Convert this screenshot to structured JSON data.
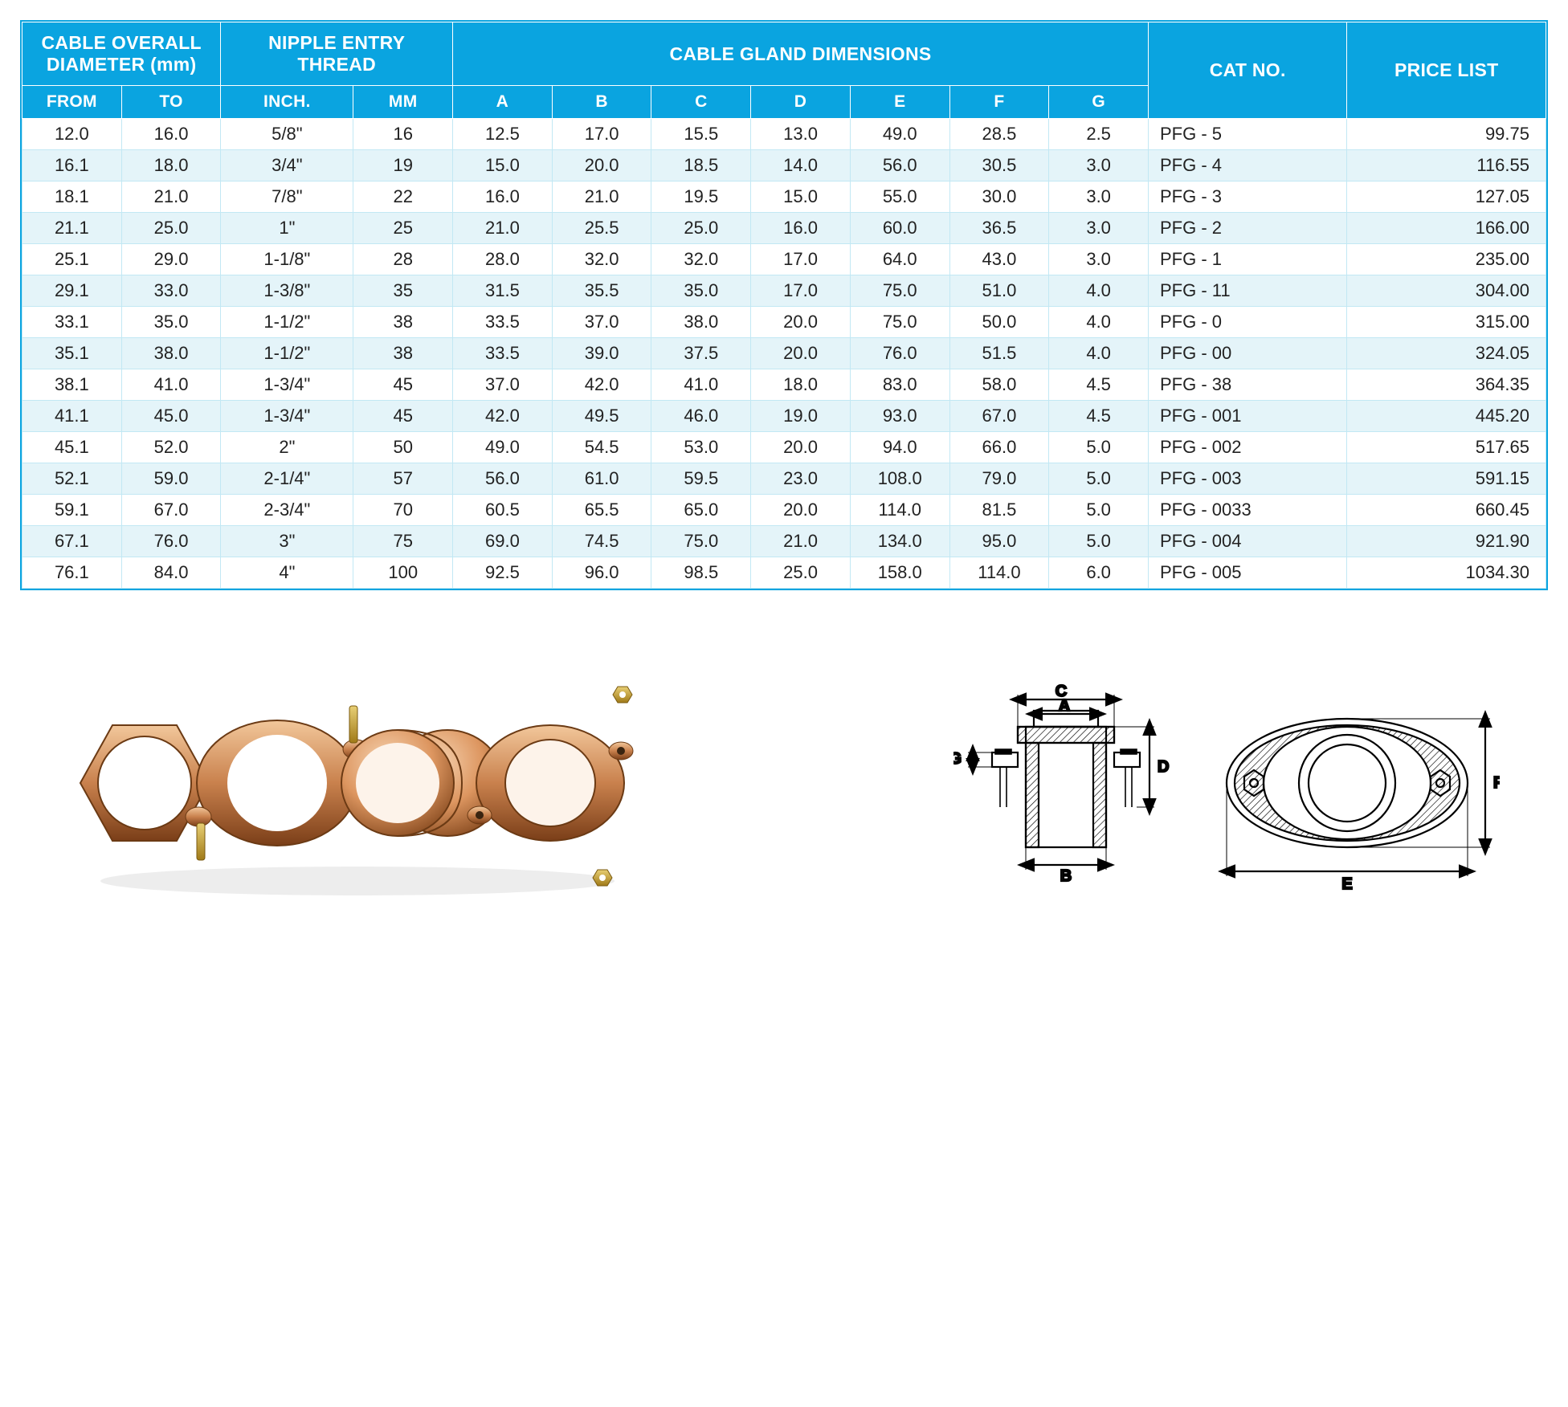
{
  "table": {
    "header": {
      "cable_overall_diameter": "CABLE OVERALL DIAMETER (mm)",
      "nipple_entry_thread": "NIPPLE ENTRY THREAD",
      "cable_gland_dimensions": "CABLE GLAND DIMENSIONS",
      "cat_no": "CAT NO.",
      "price_list": "PRICE LIST",
      "from": "FROM",
      "to": "TO",
      "inch": "INCH.",
      "mm": "MM",
      "a": "A",
      "b": "B",
      "c": "C",
      "d": "D",
      "e": "E",
      "f": "F",
      "g": "G"
    },
    "rows": [
      {
        "from": "12.0",
        "to": "16.0",
        "inch": "5/8\"",
        "mm": "16",
        "a": "12.5",
        "b": "17.0",
        "c": "15.5",
        "d": "13.0",
        "e": "49.0",
        "f": "28.5",
        "g": "2.5",
        "cat": "PFG - 5",
        "price": "99.75"
      },
      {
        "from": "16.1",
        "to": "18.0",
        "inch": "3/4\"",
        "mm": "19",
        "a": "15.0",
        "b": "20.0",
        "c": "18.5",
        "d": "14.0",
        "e": "56.0",
        "f": "30.5",
        "g": "3.0",
        "cat": "PFG - 4",
        "price": "116.55"
      },
      {
        "from": "18.1",
        "to": "21.0",
        "inch": "7/8\"",
        "mm": "22",
        "a": "16.0",
        "b": "21.0",
        "c": "19.5",
        "d": "15.0",
        "e": "55.0",
        "f": "30.0",
        "g": "3.0",
        "cat": "PFG - 3",
        "price": "127.05"
      },
      {
        "from": "21.1",
        "to": "25.0",
        "inch": "1\"",
        "mm": "25",
        "a": "21.0",
        "b": "25.5",
        "c": "25.0",
        "d": "16.0",
        "e": "60.0",
        "f": "36.5",
        "g": "3.0",
        "cat": "PFG - 2",
        "price": "166.00"
      },
      {
        "from": "25.1",
        "to": "29.0",
        "inch": "1-1/8\"",
        "mm": "28",
        "a": "28.0",
        "b": "32.0",
        "c": "32.0",
        "d": "17.0",
        "e": "64.0",
        "f": "43.0",
        "g": "3.0",
        "cat": "PFG - 1",
        "price": "235.00"
      },
      {
        "from": "29.1",
        "to": "33.0",
        "inch": "1-3/8\"",
        "mm": "35",
        "a": "31.5",
        "b": "35.5",
        "c": "35.0",
        "d": "17.0",
        "e": "75.0",
        "f": "51.0",
        "g": "4.0",
        "cat": "PFG - 11",
        "price": "304.00"
      },
      {
        "from": "33.1",
        "to": "35.0",
        "inch": "1-1/2\"",
        "mm": "38",
        "a": "33.5",
        "b": "37.0",
        "c": "38.0",
        "d": "20.0",
        "e": "75.0",
        "f": "50.0",
        "g": "4.0",
        "cat": "PFG - 0",
        "price": "315.00"
      },
      {
        "from": "35.1",
        "to": "38.0",
        "inch": "1-1/2\"",
        "mm": "38",
        "a": "33.5",
        "b": "39.0",
        "c": "37.5",
        "d": "20.0",
        "e": "76.0",
        "f": "51.5",
        "g": "4.0",
        "cat": "PFG - 00",
        "price": "324.05"
      },
      {
        "from": "38.1",
        "to": "41.0",
        "inch": "1-3/4\"",
        "mm": "45",
        "a": "37.0",
        "b": "42.0",
        "c": "41.0",
        "d": "18.0",
        "e": "83.0",
        "f": "58.0",
        "g": "4.5",
        "cat": "PFG - 38",
        "price": "364.35"
      },
      {
        "from": "41.1",
        "to": "45.0",
        "inch": "1-3/4\"",
        "mm": "45",
        "a": "42.0",
        "b": "49.5",
        "c": "46.0",
        "d": "19.0",
        "e": "93.0",
        "f": "67.0",
        "g": "4.5",
        "cat": "PFG - 001",
        "price": "445.20"
      },
      {
        "from": "45.1",
        "to": "52.0",
        "inch": "2\"",
        "mm": "50",
        "a": "49.0",
        "b": "54.5",
        "c": "53.0",
        "d": "20.0",
        "e": "94.0",
        "f": "66.0",
        "g": "5.0",
        "cat": "PFG - 002",
        "price": "517.65"
      },
      {
        "from": "52.1",
        "to": "59.0",
        "inch": "2-1/4\"",
        "mm": "57",
        "a": "56.0",
        "b": "61.0",
        "c": "59.5",
        "d": "23.0",
        "e": "108.0",
        "f": "79.0",
        "g": "5.0",
        "cat": "PFG - 003",
        "price": "591.15"
      },
      {
        "from": "59.1",
        "to": "67.0",
        "inch": "2-3/4\"",
        "mm": "70",
        "a": "60.5",
        "b": "65.5",
        "c": "65.0",
        "d": "20.0",
        "e": "114.0",
        "f": "81.5",
        "g": "5.0",
        "cat": "PFG - 0033",
        "price": "660.45"
      },
      {
        "from": "67.1",
        "to": "76.0",
        "inch": "3\"",
        "mm": "75",
        "a": "69.0",
        "b": "74.5",
        "c": "75.0",
        "d": "21.0",
        "e": "134.0",
        "f": "95.0",
        "g": "5.0",
        "cat": "PFG - 004",
        "price": "921.90"
      },
      {
        "from": "76.1",
        "to": "84.0",
        "inch": "4\"",
        "mm": "100",
        "a": "92.5",
        "b": "96.0",
        "c": "98.5",
        "d": "25.0",
        "e": "158.0",
        "f": "114.0",
        "g": "6.0",
        "cat": "PFG - 005",
        "price": "1034.30"
      }
    ],
    "colors": {
      "header_bg": "#0aa4e0",
      "header_fg": "#ffffff",
      "row_alt_bg": "#e4f4f9",
      "row_bg": "#ffffff",
      "border": "#c2e8f4",
      "text": "#222222"
    },
    "col_widths_pct": [
      6,
      6,
      8,
      6,
      6,
      6,
      6,
      6,
      6,
      6,
      6,
      12,
      12
    ]
  },
  "diagram": {
    "labels": {
      "A": "A",
      "B": "B",
      "C": "C",
      "D": "D",
      "E": "E",
      "F": "F",
      "G": "G"
    },
    "stroke": "#000000",
    "hatch": "#000000",
    "copper_light": "#e6a878",
    "copper_mid": "#c27a45",
    "copper_dark": "#8a4d22",
    "brass": "#caa23a"
  }
}
